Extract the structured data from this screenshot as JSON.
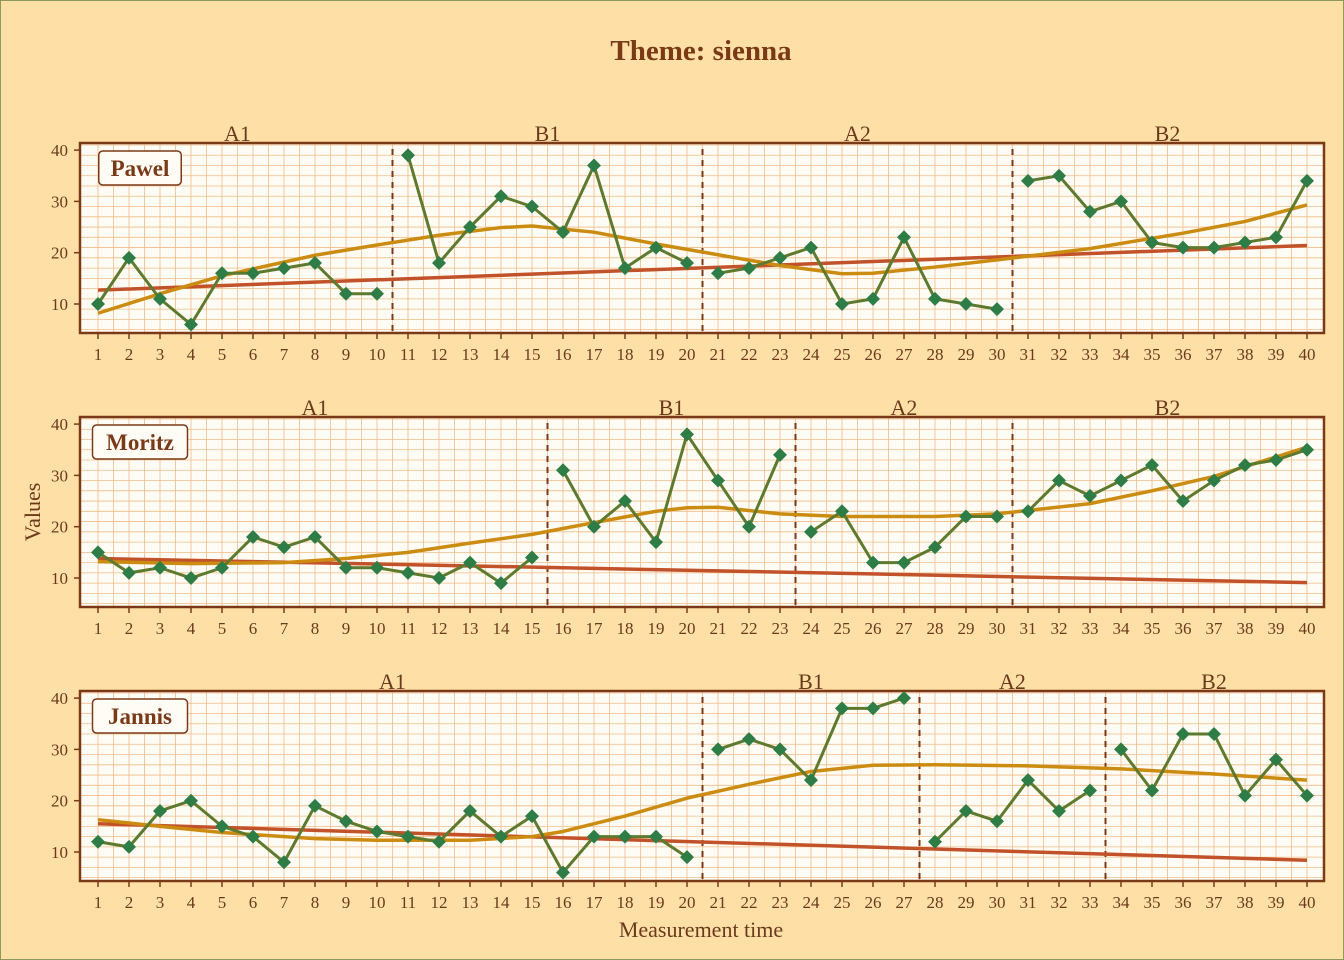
{
  "title": "Theme: sienna",
  "xlabel": "Measurement time",
  "ylabel": "Values",
  "colors": {
    "background": "#FEDFA6",
    "panel": "#FFFCF5",
    "grid": "#F0B47C",
    "frame": "#7A3A18",
    "data_line": "#5E7A2E",
    "data_marker": "#2E7D46",
    "trend_line": "#C2522A",
    "smooth_line": "#CC8C12",
    "phase_line": "#7A3A18",
    "title_text": "#7A3A18",
    "axis_text": "#6B3A1E"
  },
  "chart_data": [
    {
      "type": "line",
      "case": "Pawel",
      "x": [
        1,
        2,
        3,
        4,
        5,
        6,
        7,
        8,
        9,
        10,
        11,
        12,
        13,
        14,
        15,
        16,
        17,
        18,
        19,
        20,
        21,
        22,
        23,
        24,
        25,
        26,
        27,
        28,
        29,
        30,
        31,
        32,
        33,
        34,
        35,
        36,
        37,
        38,
        39,
        40
      ],
      "values": [
        10,
        19,
        11,
        6,
        16,
        16,
        17,
        18,
        12,
        12,
        39,
        18,
        25,
        31,
        29,
        24,
        37,
        17,
        21,
        18,
        16,
        17,
        19,
        21,
        10,
        11,
        23,
        11,
        10,
        9,
        34,
        35,
        28,
        30,
        22,
        21,
        21,
        22,
        23,
        34
      ],
      "phases": [
        {
          "label": "A1",
          "start": 1,
          "end": 10
        },
        {
          "label": "B1",
          "start": 11,
          "end": 20
        },
        {
          "label": "A2",
          "start": 21,
          "end": 30
        },
        {
          "label": "B2",
          "start": 31,
          "end": 40
        }
      ],
      "trend": [
        [
          1,
          12.7
        ],
        [
          40,
          21.4
        ]
      ],
      "smooth": [
        [
          1,
          8.2
        ],
        [
          3,
          12
        ],
        [
          5,
          15.5
        ],
        [
          8,
          19.5
        ],
        [
          10,
          21.5
        ],
        [
          12,
          23.4
        ],
        [
          14,
          24.9
        ],
        [
          15,
          25.2
        ],
        [
          17,
          24
        ],
        [
          19,
          21.7
        ],
        [
          21,
          19.6
        ],
        [
          23,
          17.5
        ],
        [
          25,
          15.9
        ],
        [
          26,
          16
        ],
        [
          28,
          17.2
        ],
        [
          30,
          18.6
        ],
        [
          33,
          20.8
        ],
        [
          36,
          23.8
        ],
        [
          38,
          26.1
        ],
        [
          40,
          29.3
        ]
      ],
      "xlim": [
        1,
        40
      ],
      "ylim": [
        5,
        40
      ],
      "yticks": [
        10,
        20,
        30,
        40
      ]
    },
    {
      "type": "line",
      "case": "Moritz",
      "x": [
        1,
        2,
        3,
        4,
        5,
        6,
        7,
        8,
        9,
        10,
        11,
        12,
        13,
        14,
        15,
        16,
        17,
        18,
        19,
        20,
        21,
        22,
        23,
        24,
        25,
        26,
        27,
        28,
        29,
        30,
        31,
        32,
        33,
        34,
        35,
        36,
        37,
        38,
        39,
        40
      ],
      "values": [
        15,
        11,
        12,
        10,
        12,
        18,
        16,
        18,
        12,
        12,
        11,
        10,
        13,
        9,
        14,
        31,
        20,
        25,
        17,
        38,
        29,
        20,
        34,
        19,
        23,
        13,
        13,
        16,
        22,
        22,
        23,
        29,
        26,
        29,
        32,
        25,
        29,
        32,
        33,
        35
      ],
      "phases": [
        {
          "label": "A1",
          "start": 1,
          "end": 15
        },
        {
          "label": "B1",
          "start": 16,
          "end": 23
        },
        {
          "label": "A2",
          "start": 24,
          "end": 30
        },
        {
          "label": "B2",
          "start": 31,
          "end": 40
        }
      ],
      "trend": [
        [
          1,
          13.8
        ],
        [
          40,
          9.1
        ]
      ],
      "smooth": [
        [
          1,
          13.2
        ],
        [
          4,
          12.8
        ],
        [
          7,
          13
        ],
        [
          9,
          13.8
        ],
        [
          11,
          15
        ],
        [
          13,
          16.8
        ],
        [
          15,
          18.5
        ],
        [
          17,
          20.8
        ],
        [
          19,
          23
        ],
        [
          20,
          23.7
        ],
        [
          21,
          23.8
        ],
        [
          23,
          22.5
        ],
        [
          25,
          22
        ],
        [
          28,
          22
        ],
        [
          30,
          22.5
        ],
        [
          33,
          24.5
        ],
        [
          35,
          27
        ],
        [
          37,
          29.8
        ],
        [
          40,
          35.5
        ]
      ],
      "xlim": [
        1,
        40
      ],
      "ylim": [
        5,
        40
      ],
      "yticks": [
        10,
        20,
        30,
        40
      ]
    },
    {
      "type": "line",
      "case": "Jannis",
      "x": [
        1,
        2,
        3,
        4,
        5,
        6,
        7,
        8,
        9,
        10,
        11,
        12,
        13,
        14,
        15,
        16,
        17,
        18,
        19,
        20,
        21,
        22,
        23,
        24,
        25,
        26,
        27,
        28,
        29,
        30,
        31,
        32,
        33,
        34,
        35,
        36,
        37,
        38,
        39,
        40
      ],
      "values": [
        12,
        11,
        18,
        20,
        15,
        13,
        8,
        19,
        16,
        14,
        13,
        12,
        18,
        13,
        17,
        6,
        13,
        13,
        13,
        9,
        30,
        32,
        30,
        24,
        38,
        38,
        40,
        12,
        18,
        16,
        24,
        18,
        22,
        30,
        22,
        33,
        33,
        21,
        28,
        21
      ],
      "phases": [
        {
          "label": "A1",
          "start": 1,
          "end": 20
        },
        {
          "label": "B1",
          "start": 21,
          "end": 27
        },
        {
          "label": "A2",
          "start": 28,
          "end": 33
        },
        {
          "label": "B2",
          "start": 34,
          "end": 40
        }
      ],
      "trend": [
        [
          1,
          15.5
        ],
        [
          40,
          8.4
        ]
      ],
      "smooth": [
        [
          1,
          16.3
        ],
        [
          3,
          15
        ],
        [
          5,
          13.8
        ],
        [
          8,
          12.6
        ],
        [
          10,
          12.3
        ],
        [
          13,
          12.3
        ],
        [
          15,
          13
        ],
        [
          16,
          14
        ],
        [
          18,
          17
        ],
        [
          20,
          20.5
        ],
        [
          22,
          23.2
        ],
        [
          24,
          25.7
        ],
        [
          26,
          26.9
        ],
        [
          28,
          27
        ],
        [
          31,
          26.8
        ],
        [
          34,
          26.2
        ],
        [
          37,
          25.2
        ],
        [
          40,
          24
        ]
      ],
      "xlim": [
        1,
        40
      ],
      "ylim": [
        5,
        40
      ],
      "yticks": [
        10,
        20,
        30,
        40
      ]
    }
  ]
}
